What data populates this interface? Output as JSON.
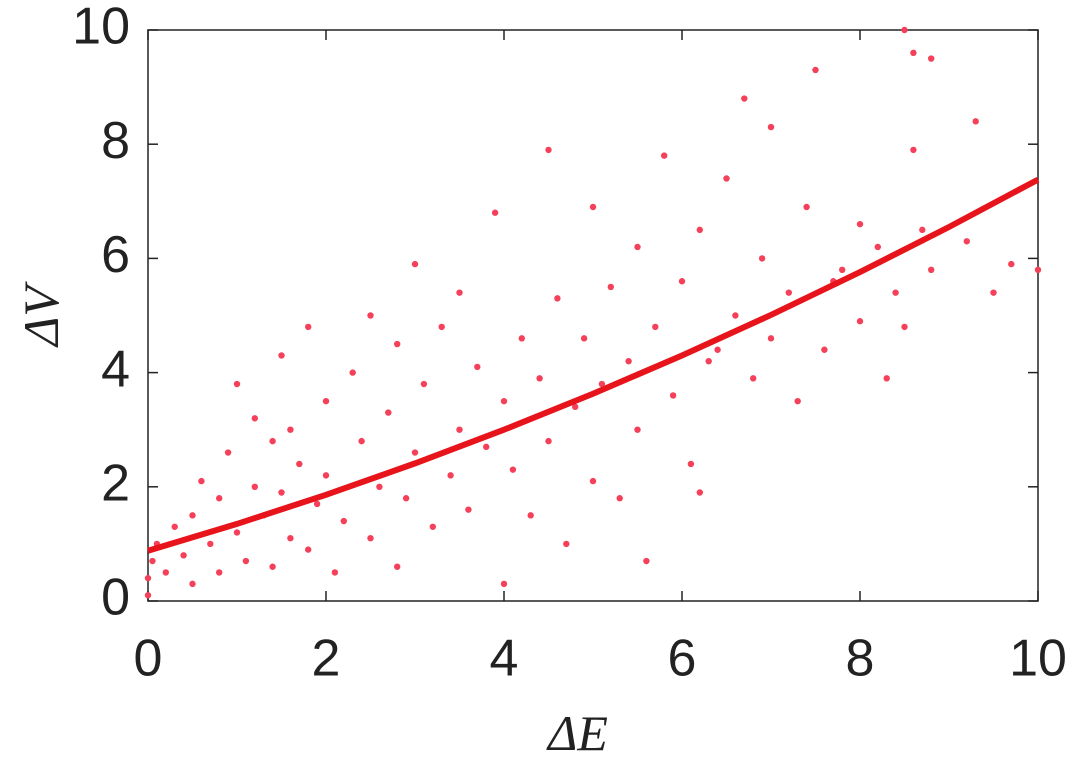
{
  "chart_data": {
    "type": "scatter",
    "xlabel": "ΔE",
    "ylabel": "ΔV",
    "xlim": [
      0,
      10
    ],
    "ylim": [
      0,
      10
    ],
    "xticks": [
      0,
      2,
      4,
      6,
      8,
      10
    ],
    "yticks": [
      0,
      2,
      4,
      6,
      8,
      10
    ],
    "series": [
      {
        "type": "scatter",
        "color": "#f5405a",
        "x": [
          0,
          0,
          0.05,
          0.1,
          0.2,
          0.3,
          0.4,
          0.5,
          0.5,
          0.6,
          0.7,
          0.8,
          0.8,
          0.9,
          1.0,
          1.0,
          1.1,
          1.2,
          1.2,
          1.3,
          1.4,
          1.4,
          1.5,
          1.5,
          1.6,
          1.6,
          1.7,
          1.8,
          1.8,
          1.9,
          2.0,
          2.0,
          2.1,
          2.2,
          2.3,
          2.4,
          2.5,
          2.5,
          2.6,
          2.7,
          2.8,
          2.8,
          2.9,
          3.0,
          3.0,
          3.1,
          3.2,
          3.3,
          3.4,
          3.5,
          3.5,
          3.6,
          3.7,
          3.8,
          3.9,
          4.0,
          4.0,
          4.1,
          4.2,
          4.3,
          4.4,
          4.5,
          4.5,
          4.6,
          4.7,
          4.8,
          4.9,
          5.0,
          5.0,
          5.1,
          5.2,
          5.3,
          5.4,
          5.5,
          5.5,
          5.6,
          5.7,
          5.8,
          5.9,
          6.0,
          6.1,
          6.2,
          6.2,
          6.4,
          6.5,
          6.6,
          6.7,
          6.8,
          6.9,
          7.0,
          7.0,
          7.2,
          7.3,
          7.4,
          7.5,
          7.6,
          7.8,
          8.0,
          8.0,
          8.2,
          8.3,
          8.4,
          8.5,
          8.5,
          8.6,
          8.6,
          8.7,
          8.8,
          9.2,
          9.3,
          9.5,
          9.7,
          10.0,
          8.8,
          7.7,
          6.3
        ],
        "y": [
          0.1,
          0.4,
          0.7,
          1.0,
          0.5,
          1.3,
          0.8,
          1.5,
          0.3,
          2.1,
          1.0,
          1.8,
          0.5,
          2.6,
          1.2,
          3.8,
          0.7,
          2.0,
          3.2,
          1.5,
          2.8,
          0.6,
          1.9,
          4.3,
          1.1,
          3.0,
          2.4,
          4.8,
          0.9,
          1.7,
          3.5,
          2.2,
          0.5,
          1.4,
          4.0,
          2.8,
          1.1,
          5.0,
          2.0,
          3.3,
          0.6,
          4.5,
          1.8,
          2.6,
          5.9,
          3.8,
          1.3,
          4.8,
          2.2,
          3.0,
          5.4,
          1.6,
          4.1,
          2.7,
          6.8,
          3.5,
          0.3,
          2.3,
          4.6,
          1.5,
          3.9,
          7.9,
          2.8,
          5.3,
          1.0,
          3.4,
          4.6,
          6.9,
          2.1,
          3.8,
          5.5,
          1.8,
          4.2,
          6.2,
          3.0,
          0.7,
          4.8,
          7.8,
          3.6,
          5.6,
          2.4,
          6.5,
          1.9,
          4.4,
          7.4,
          5.0,
          8.8,
          3.9,
          6.0,
          4.6,
          8.3,
          5.4,
          3.5,
          6.9,
          9.3,
          4.4,
          5.8,
          4.9,
          6.6,
          6.2,
          3.9,
          5.4,
          10.0,
          4.8,
          7.9,
          9.6,
          6.5,
          9.5,
          6.3,
          8.4,
          5.4,
          5.9,
          5.8,
          5.8,
          5.6,
          4.2
        ]
      },
      {
        "type": "line",
        "color": "#e8141c",
        "x": [
          0,
          1,
          2,
          3,
          4,
          5,
          6,
          7,
          8,
          9,
          10
        ],
        "y": [
          0.88,
          1.35,
          1.86,
          2.41,
          3.0,
          3.63,
          4.3,
          5.01,
          5.76,
          6.55,
          7.38
        ]
      }
    ]
  }
}
